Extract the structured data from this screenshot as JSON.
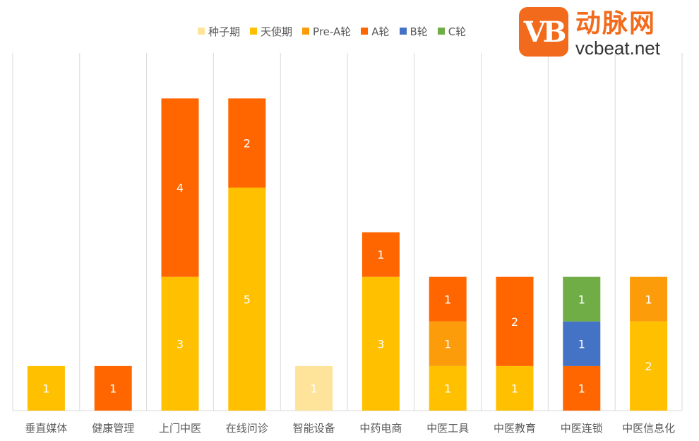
{
  "logo": {
    "badge": "VB",
    "cn": "动脉网",
    "en": "vcbeat.net"
  },
  "colors": {
    "种子期": "#fde49a",
    "天使期": "#ffc000",
    "Pre-A轮": "#fd9c0a",
    "A轮": "#ff6600",
    "B轮": "#4472c4",
    "C轮": "#70ad47",
    "grid": "#d9d9d9",
    "axis_text": "#595959",
    "label_text": "#ffffff"
  },
  "chart_data": {
    "type": "bar",
    "stacked": true,
    "title": "",
    "xlabel": "",
    "ylabel": "",
    "ylim": [
      0,
      7
    ],
    "grid": "vertical category separators",
    "legend_position": "top",
    "categories": [
      "垂直媒体",
      "健康管理",
      "上门中医",
      "在线问诊",
      "智能设备",
      "中药电商",
      "中医工具",
      "中医教育",
      "中医连锁",
      "中医信息化"
    ],
    "series": [
      {
        "name": "种子期",
        "values": [
          0,
          0,
          0,
          0,
          1,
          0,
          0,
          0,
          0,
          0
        ]
      },
      {
        "name": "天使期",
        "values": [
          1,
          0,
          3,
          5,
          0,
          3,
          1,
          1,
          0,
          2
        ]
      },
      {
        "name": "Pre-A轮",
        "values": [
          0,
          0,
          0,
          0,
          0,
          0,
          1,
          0,
          0,
          1
        ]
      },
      {
        "name": "A轮",
        "values": [
          0,
          1,
          4,
          2,
          0,
          1,
          1,
          2,
          1,
          0
        ]
      },
      {
        "name": "B轮",
        "values": [
          0,
          0,
          0,
          0,
          0,
          0,
          0,
          0,
          1,
          0
        ]
      },
      {
        "name": "C轮",
        "values": [
          0,
          0,
          0,
          0,
          0,
          0,
          0,
          0,
          1,
          0
        ]
      }
    ]
  }
}
